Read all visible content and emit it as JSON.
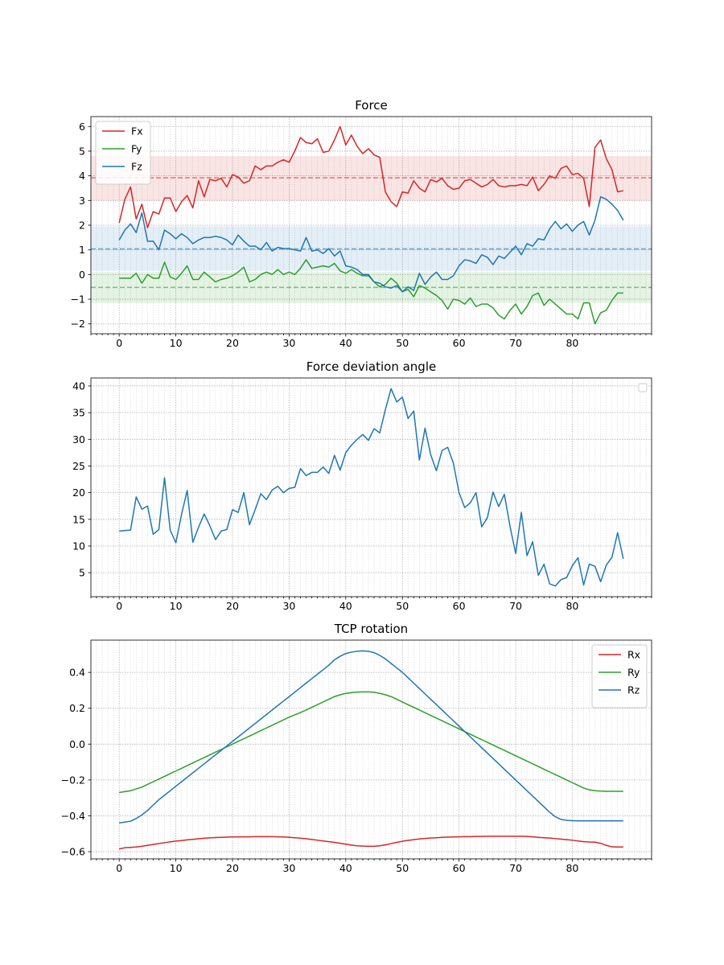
{
  "chart_data": [
    {
      "type": "line",
      "title": "Force",
      "xlabel": "",
      "ylabel": "",
      "xlim": [
        -5,
        94
      ],
      "ylim": [
        -2.4,
        6.4
      ],
      "xticks": [
        0,
        10,
        20,
        30,
        40,
        50,
        60,
        70,
        80
      ],
      "yticks": [
        -2,
        -1,
        0,
        1,
        2,
        3,
        4,
        5,
        6
      ],
      "grid": true,
      "legend": "top-left",
      "bands": [
        {
          "color": "#d62728",
          "low": 3.0,
          "high": 4.8,
          "mean": 3.92
        },
        {
          "color": "#1f77b4",
          "low": 0.15,
          "high": 1.95,
          "mean": 1.04
        },
        {
          "color": "#2ca02c",
          "low": -1.15,
          "high": 0.1,
          "mean": -0.52
        }
      ],
      "series": [
        {
          "name": "Fx",
          "color": "#d62728",
          "values": [
            2.1,
            3.05,
            3.55,
            2.25,
            2.85,
            1.9,
            2.55,
            2.45,
            3.1,
            3.1,
            2.55,
            2.95,
            3.2,
            2.7,
            3.8,
            3.15,
            3.85,
            3.8,
            3.9,
            3.55,
            4.05,
            3.95,
            3.7,
            3.8,
            4.4,
            4.25,
            4.4,
            4.4,
            4.55,
            4.65,
            4.55,
            5.0,
            5.55,
            5.35,
            5.3,
            5.5,
            4.95,
            5.0,
            5.45,
            6.0,
            5.25,
            5.65,
            5.2,
            4.9,
            5.1,
            4.85,
            4.75,
            3.35,
            2.95,
            2.75,
            3.35,
            3.3,
            3.8,
            3.5,
            3.35,
            3.85,
            3.75,
            3.9,
            3.6,
            3.45,
            3.5,
            3.8,
            3.85,
            3.7,
            3.55,
            3.65,
            3.85,
            3.6,
            3.55,
            3.6,
            3.6,
            3.65,
            3.6,
            3.95,
            3.4,
            3.65,
            4.0,
            3.9,
            4.3,
            4.4,
            4.05,
            4.1,
            3.9,
            2.75,
            5.15,
            5.45,
            4.7,
            4.25,
            3.35,
            3.4
          ]
        },
        {
          "name": "Fy",
          "color": "#2ca02c",
          "values": [
            -0.15,
            -0.15,
            -0.15,
            0.05,
            -0.35,
            0.0,
            -0.15,
            -0.15,
            0.5,
            -0.1,
            -0.2,
            0.05,
            0.35,
            -0.2,
            -0.2,
            0.1,
            -0.1,
            -0.3,
            -0.2,
            -0.15,
            -0.05,
            0.1,
            0.3,
            -0.3,
            -0.2,
            0.0,
            0.1,
            0.0,
            0.2,
            0.0,
            0.1,
            0.0,
            0.25,
            0.6,
            0.25,
            0.3,
            0.35,
            0.3,
            0.45,
            0.15,
            0.05,
            0.2,
            0.05,
            -0.05,
            -0.05,
            -0.3,
            -0.5,
            -0.4,
            -0.15,
            -0.35,
            -0.7,
            -0.6,
            -0.9,
            -0.45,
            -0.55,
            -0.7,
            -0.85,
            -1.05,
            -1.4,
            -1.0,
            -1.05,
            -1.2,
            -0.95,
            -1.3,
            -1.2,
            -1.2,
            -1.35,
            -1.65,
            -1.8,
            -1.45,
            -1.2,
            -1.6,
            -1.3,
            -0.85,
            -0.75,
            -1.25,
            -1.0,
            -1.2,
            -1.4,
            -1.6,
            -1.6,
            -1.8,
            -1.15,
            -1.15,
            -2.0,
            -1.55,
            -1.45,
            -1.05,
            -0.75,
            -0.75
          ]
        },
        {
          "name": "Fz",
          "color": "#1f77b4",
          "values": [
            1.4,
            1.8,
            2.05,
            1.7,
            2.5,
            1.35,
            1.35,
            1.0,
            1.8,
            1.65,
            1.45,
            1.65,
            1.5,
            1.25,
            1.4,
            1.5,
            1.5,
            1.55,
            1.5,
            1.4,
            1.2,
            1.6,
            1.35,
            1.15,
            1.15,
            1.0,
            1.3,
            0.95,
            1.1,
            1.05,
            1.05,
            1.0,
            0.95,
            1.5,
            0.95,
            1.0,
            0.85,
            1.05,
            0.75,
            0.95,
            0.35,
            0.3,
            0.2,
            0.0,
            0.0,
            -0.3,
            -0.35,
            -0.5,
            -0.55,
            -0.45,
            -0.7,
            -0.5,
            -0.65,
            0.05,
            -0.4,
            -0.1,
            0.1,
            -0.2,
            -0.2,
            -0.05,
            0.35,
            0.6,
            0.55,
            0.45,
            0.8,
            0.7,
            0.4,
            0.75,
            0.65,
            0.9,
            1.15,
            0.8,
            1.25,
            1.15,
            1.45,
            1.4,
            1.85,
            2.15,
            1.85,
            2.05,
            1.75,
            2.0,
            2.15,
            1.6,
            2.2,
            3.15,
            3.05,
            2.85,
            2.6,
            2.2
          ]
        }
      ]
    },
    {
      "type": "line",
      "title": "Force deviation angle",
      "xlabel": "",
      "ylabel": "",
      "xlim": [
        -5,
        94
      ],
      "ylim": [
        0.5,
        41.5
      ],
      "xticks": [
        0,
        10,
        20,
        30,
        40,
        50,
        60,
        70,
        80
      ],
      "yticks": [
        5,
        10,
        15,
        20,
        25,
        30,
        35,
        40
      ],
      "grid": true,
      "legend": "top-right (empty)",
      "series": [
        {
          "name": "",
          "color": "#1f77b4",
          "values": [
            12.8,
            12.9,
            13.0,
            19.2,
            16.9,
            17.5,
            12.2,
            13.1,
            22.8,
            13.0,
            10.6,
            15.9,
            20.4,
            10.7,
            13.5,
            16.0,
            13.8,
            11.2,
            12.8,
            13.1,
            16.8,
            16.3,
            20.0,
            14.0,
            16.8,
            19.8,
            18.7,
            20.5,
            21.2,
            20.0,
            20.8,
            21.0,
            24.5,
            23.2,
            23.8,
            23.8,
            24.8,
            23.6,
            27.0,
            24.2,
            27.5,
            28.9,
            30.0,
            30.9,
            29.8,
            32.0,
            31.2,
            35.6,
            39.5,
            37.0,
            37.9,
            33.9,
            35.3,
            26.1,
            32.1,
            27.1,
            24.1,
            27.9,
            28.5,
            25.5,
            20.0,
            17.2,
            18.1,
            20.0,
            13.6,
            15.3,
            20.1,
            17.4,
            19.7,
            13.7,
            8.6,
            16.3,
            8.2,
            10.8,
            4.5,
            6.6,
            2.9,
            2.5,
            3.7,
            4.1,
            6.3,
            7.8,
            2.7,
            6.6,
            6.2,
            3.3,
            6.4,
            7.9,
            12.5,
            7.6
          ]
        }
      ]
    },
    {
      "type": "line",
      "title": "TCP rotation",
      "xlabel": "",
      "ylabel": "",
      "xlim": [
        -5,
        94
      ],
      "ylim": [
        -0.64,
        0.58
      ],
      "xticks": [
        0,
        10,
        20,
        30,
        40,
        50,
        60,
        70,
        80
      ],
      "yticks": [
        -0.6,
        -0.4,
        -0.2,
        0.0,
        0.2,
        0.4
      ],
      "ytick_labels": [
        "−0.6",
        "−0.4",
        "−0.2",
        "0.0",
        "0.2",
        "0.4"
      ],
      "grid": true,
      "legend": "top-right",
      "series": [
        {
          "name": "Rx",
          "color": "#d62728",
          "values": [
            -0.585,
            -0.578,
            -0.576,
            -0.574,
            -0.57,
            -0.565,
            -0.56,
            -0.555,
            -0.55,
            -0.545,
            -0.541,
            -0.538,
            -0.534,
            -0.531,
            -0.528,
            -0.525,
            -0.523,
            -0.521,
            -0.52,
            -0.519,
            -0.518,
            -0.518,
            -0.517,
            -0.517,
            -0.516,
            -0.516,
            -0.516,
            -0.516,
            -0.517,
            -0.518,
            -0.52,
            -0.522,
            -0.525,
            -0.528,
            -0.532,
            -0.536,
            -0.54,
            -0.544,
            -0.548,
            -0.553,
            -0.558,
            -0.563,
            -0.567,
            -0.569,
            -0.57,
            -0.57,
            -0.567,
            -0.562,
            -0.555,
            -0.548,
            -0.542,
            -0.537,
            -0.533,
            -0.529,
            -0.526,
            -0.524,
            -0.522,
            -0.52,
            -0.519,
            -0.518,
            -0.517,
            -0.516,
            -0.516,
            -0.515,
            -0.515,
            -0.514,
            -0.514,
            -0.514,
            -0.514,
            -0.514,
            -0.514,
            -0.514,
            -0.515,
            -0.517,
            -0.52,
            -0.522,
            -0.524,
            -0.527,
            -0.53,
            -0.533,
            -0.536,
            -0.54,
            -0.544,
            -0.546,
            -0.547,
            -0.553,
            -0.565,
            -0.573,
            -0.574,
            -0.574
          ]
        },
        {
          "name": "Ry",
          "color": "#2ca02c",
          "values": [
            -0.27,
            -0.265,
            -0.26,
            -0.25,
            -0.24,
            -0.225,
            -0.21,
            -0.195,
            -0.18,
            -0.165,
            -0.15,
            -0.135,
            -0.12,
            -0.105,
            -0.09,
            -0.075,
            -0.06,
            -0.045,
            -0.03,
            -0.015,
            0.0,
            0.015,
            0.03,
            0.045,
            0.06,
            0.075,
            0.09,
            0.105,
            0.12,
            0.135,
            0.15,
            0.163,
            0.176,
            0.19,
            0.205,
            0.22,
            0.235,
            0.25,
            0.265,
            0.275,
            0.283,
            0.287,
            0.29,
            0.291,
            0.291,
            0.289,
            0.283,
            0.275,
            0.265,
            0.25,
            0.235,
            0.22,
            0.205,
            0.19,
            0.175,
            0.16,
            0.145,
            0.13,
            0.115,
            0.1,
            0.085,
            0.07,
            0.055,
            0.04,
            0.025,
            0.01,
            -0.005,
            -0.02,
            -0.035,
            -0.05,
            -0.065,
            -0.08,
            -0.095,
            -0.11,
            -0.125,
            -0.14,
            -0.155,
            -0.17,
            -0.185,
            -0.2,
            -0.215,
            -0.23,
            -0.245,
            -0.255,
            -0.26,
            -0.262,
            -0.263,
            -0.263,
            -0.263,
            -0.263
          ]
        },
        {
          "name": "Rz",
          "color": "#1f77b4",
          "values": [
            -0.44,
            -0.435,
            -0.43,
            -0.415,
            -0.395,
            -0.37,
            -0.34,
            -0.31,
            -0.285,
            -0.26,
            -0.235,
            -0.21,
            -0.185,
            -0.16,
            -0.135,
            -0.11,
            -0.085,
            -0.06,
            -0.035,
            -0.01,
            0.015,
            0.04,
            0.065,
            0.09,
            0.115,
            0.14,
            0.165,
            0.19,
            0.215,
            0.24,
            0.265,
            0.29,
            0.315,
            0.34,
            0.365,
            0.39,
            0.415,
            0.44,
            0.47,
            0.49,
            0.505,
            0.513,
            0.518,
            0.52,
            0.518,
            0.51,
            0.495,
            0.475,
            0.45,
            0.425,
            0.4,
            0.37,
            0.34,
            0.31,
            0.28,
            0.25,
            0.22,
            0.19,
            0.16,
            0.13,
            0.1,
            0.07,
            0.04,
            0.01,
            -0.02,
            -0.05,
            -0.08,
            -0.11,
            -0.14,
            -0.17,
            -0.2,
            -0.23,
            -0.26,
            -0.29,
            -0.32,
            -0.35,
            -0.38,
            -0.405,
            -0.42,
            -0.425,
            -0.427,
            -0.428,
            -0.428,
            -0.428,
            -0.428,
            -0.428,
            -0.428,
            -0.428,
            -0.428,
            -0.428
          ]
        }
      ]
    }
  ]
}
